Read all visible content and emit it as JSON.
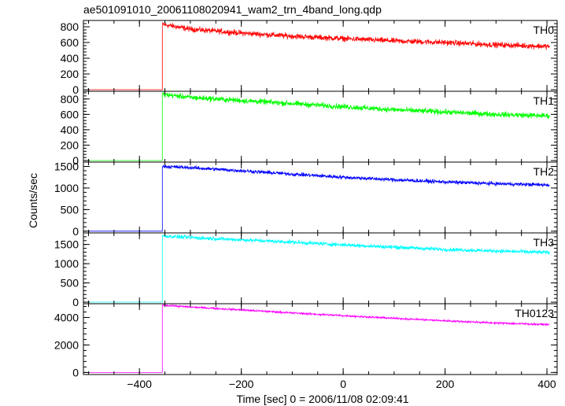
{
  "chart_data": {
    "type": "line",
    "title": "ae501091010_20061108020941_wam2_trn_4band_long.qdp",
    "xlabel": "Time [sec] 0 = 2006/11/08 02:09:41",
    "ylabel": "Counts/sec",
    "xlim": [
      -510,
      420
    ],
    "x_ticks": [
      -400,
      -200,
      0,
      200,
      400
    ],
    "x_tick_labels": [
      "−400",
      "−200",
      "0",
      "200",
      "400"
    ],
    "trigger_time": -355,
    "x_start": -500,
    "x_end": 405,
    "panels": [
      {
        "name": "TH0",
        "color": "#ff0000",
        "ylim": [
          -20,
          880
        ],
        "y_ticks": [
          0,
          200,
          400,
          600,
          800
        ],
        "y_tick_labels": [
          "0",
          "200",
          "400",
          "600",
          "800"
        ],
        "pre_level": 0,
        "x": [
          -355,
          -300,
          -200,
          -100,
          0,
          100,
          200,
          300,
          405
        ],
        "y": [
          830,
          770,
          720,
          680,
          650,
          620,
          600,
          570,
          550
        ],
        "noise": 25
      },
      {
        "name": "TH1",
        "color": "#00ff00",
        "ylim": [
          -20,
          900
        ],
        "y_ticks": [
          0,
          200,
          400,
          600,
          800
        ],
        "y_tick_labels": [
          "0",
          "200",
          "400",
          "600",
          "800"
        ],
        "pre_level": 0,
        "x": [
          -355,
          -300,
          -200,
          -100,
          0,
          100,
          200,
          300,
          405
        ],
        "y": [
          860,
          820,
          780,
          740,
          700,
          660,
          630,
          600,
          580
        ],
        "noise": 25
      },
      {
        "name": "TH2",
        "color": "#0000ff",
        "ylim": [
          -40,
          1600
        ],
        "y_ticks": [
          0,
          500,
          1000,
          1500
        ],
        "y_tick_labels": [
          "0",
          "500",
          "1000",
          "1500"
        ],
        "pre_level": 0,
        "x": [
          -355,
          -300,
          -200,
          -100,
          0,
          100,
          200,
          300,
          405
        ],
        "y": [
          1500,
          1470,
          1400,
          1320,
          1250,
          1190,
          1140,
          1100,
          1070
        ],
        "noise": 30
      },
      {
        "name": "TH3",
        "color": "#00ffff",
        "ylim": [
          -40,
          1800
        ],
        "y_ticks": [
          0,
          500,
          1000,
          1500
        ],
        "y_tick_labels": [
          "0",
          "500",
          "1000",
          "1500"
        ],
        "pre_level": 0,
        "x": [
          -355,
          -300,
          -200,
          -100,
          0,
          100,
          200,
          300,
          405
        ],
        "y": [
          1720,
          1680,
          1620,
          1560,
          1490,
          1430,
          1370,
          1330,
          1290
        ],
        "noise": 35
      },
      {
        "name": "TH0123",
        "color": "#ff00ff",
        "ylim": [
          -150,
          5000
        ],
        "y_ticks": [
          0,
          2000,
          4000
        ],
        "y_tick_labels": [
          "0",
          "2000",
          "4000"
        ],
        "pre_level": 0,
        "x": [
          -355,
          -300,
          -200,
          -100,
          0,
          100,
          200,
          300,
          405
        ],
        "y": [
          4900,
          4760,
          4550,
          4330,
          4130,
          3940,
          3760,
          3600,
          3480
        ],
        "noise": 50
      }
    ]
  }
}
